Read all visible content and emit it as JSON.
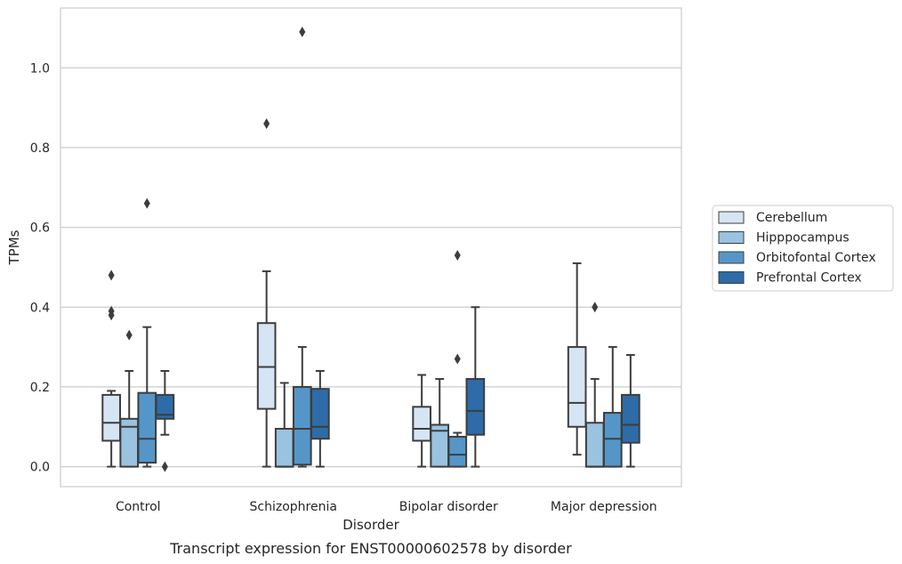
{
  "chart_data": {
    "type": "box",
    "title": "",
    "caption": "Transcript expression for ENST00000602578 by disorder",
    "xlabel": "Disorder",
    "ylabel": "TPMs",
    "ylim": [
      -0.05,
      1.15
    ],
    "yticks": [
      "0.0",
      "0.2",
      "0.4",
      "0.6",
      "0.8",
      "1.0"
    ],
    "grid": "horizontal",
    "legend_position": "right",
    "categories": [
      "Control",
      "Schizophrenia",
      "Bipolar disorder",
      "Major depression"
    ],
    "series": [
      {
        "name": "Cerebellum",
        "color": "#d6e5f4",
        "boxes": [
          {
            "whisker_low": 0.0,
            "q1": 0.065,
            "median": 0.11,
            "q3": 0.18,
            "whisker_high": 0.19,
            "outliers": [
              0.38,
              0.39,
              0.48
            ]
          },
          {
            "whisker_low": 0.0,
            "q1": 0.145,
            "median": 0.25,
            "q3": 0.36,
            "whisker_high": 0.49,
            "outliers": [
              0.86
            ]
          },
          {
            "whisker_low": 0.0,
            "q1": 0.065,
            "median": 0.095,
            "q3": 0.15,
            "whisker_high": 0.23,
            "outliers": []
          },
          {
            "whisker_low": 0.03,
            "q1": 0.1,
            "median": 0.16,
            "q3": 0.3,
            "whisker_high": 0.51,
            "outliers": []
          }
        ]
      },
      {
        "name": "Hipppocampus",
        "color": "#99c3e0",
        "boxes": [
          {
            "whisker_low": 0.0,
            "q1": 0.0,
            "median": 0.1,
            "q3": 0.12,
            "whisker_high": 0.24,
            "outliers": [
              0.33
            ]
          },
          {
            "whisker_low": 0.0,
            "q1": 0.0,
            "median": 0.0,
            "q3": 0.095,
            "whisker_high": 0.21,
            "outliers": []
          },
          {
            "whisker_low": 0.0,
            "q1": 0.0,
            "median": 0.09,
            "q3": 0.105,
            "whisker_high": 0.22,
            "outliers": []
          },
          {
            "whisker_low": 0.0,
            "q1": 0.0,
            "median": 0.0,
            "q3": 0.11,
            "whisker_high": 0.22,
            "outliers": [
              0.4
            ]
          }
        ]
      },
      {
        "name": "Orbitofontal Cortex",
        "color": "#5596c8",
        "boxes": [
          {
            "whisker_low": 0.0,
            "q1": 0.01,
            "median": 0.07,
            "q3": 0.185,
            "whisker_high": 0.35,
            "outliers": [
              0.66
            ]
          },
          {
            "whisker_low": 0.0,
            "q1": 0.005,
            "median": 0.095,
            "q3": 0.2,
            "whisker_high": 0.3,
            "outliers": [
              1.09
            ]
          },
          {
            "whisker_low": 0.0,
            "q1": 0.0,
            "median": 0.03,
            "q3": 0.075,
            "whisker_high": 0.085,
            "outliers": [
              0.27,
              0.53
            ]
          },
          {
            "whisker_low": 0.0,
            "q1": 0.0,
            "median": 0.07,
            "q3": 0.135,
            "whisker_high": 0.3,
            "outliers": []
          }
        ]
      },
      {
        "name": "Prefrontal Cortex",
        "color": "#2d6ca8",
        "boxes": [
          {
            "whisker_low": 0.08,
            "q1": 0.12,
            "median": 0.13,
            "q3": 0.18,
            "whisker_high": 0.24,
            "outliers": [
              0.0
            ]
          },
          {
            "whisker_low": 0.0,
            "q1": 0.07,
            "median": 0.1,
            "q3": 0.195,
            "whisker_high": 0.24,
            "outliers": []
          },
          {
            "whisker_low": 0.0,
            "q1": 0.08,
            "median": 0.14,
            "q3": 0.22,
            "whisker_high": 0.4,
            "outliers": []
          },
          {
            "whisker_low": 0.0,
            "q1": 0.06,
            "median": 0.105,
            "q3": 0.18,
            "whisker_high": 0.28,
            "outliers": []
          }
        ]
      }
    ]
  }
}
